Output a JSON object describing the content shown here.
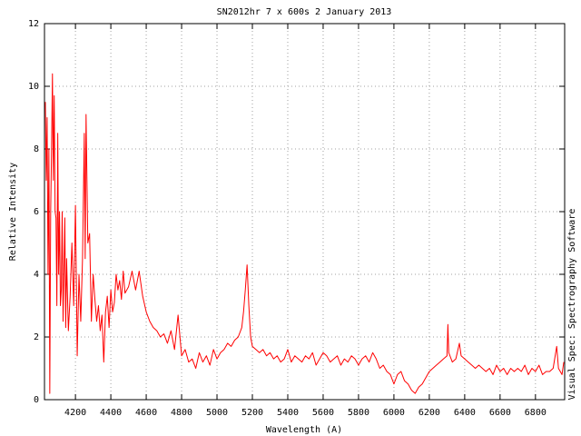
{
  "chart_data": {
    "type": "line",
    "title": "SN2012hr 7 x 600s 2 January 2013",
    "x_label": "Wavelength (A)",
    "y_label": "Relative Intensity",
    "side_note": "Visual Spec: Spectrography Software",
    "grid": true,
    "xlim": [
      4025,
      6965
    ],
    "ylim": [
      0,
      12
    ],
    "xticks": [
      4200,
      4400,
      4600,
      4800,
      5000,
      5200,
      5400,
      5600,
      5800,
      6000,
      6200,
      6400,
      6600,
      6800
    ],
    "yticks": [
      0,
      2,
      4,
      6,
      8,
      10,
      12
    ],
    "x": [
      4030,
      4035,
      4040,
      4045,
      4050,
      4055,
      4060,
      4065,
      4070,
      4075,
      4080,
      4085,
      4090,
      4095,
      4100,
      4105,
      4110,
      4115,
      4120,
      4125,
      4130,
      4140,
      4145,
      4150,
      4160,
      4170,
      4180,
      4190,
      4200,
      4210,
      4220,
      4230,
      4240,
      4250,
      4255,
      4260,
      4270,
      4280,
      4290,
      4300,
      4310,
      4320,
      4330,
      4340,
      4350,
      4360,
      4370,
      4380,
      4390,
      4400,
      4410,
      4420,
      4430,
      4440,
      4450,
      4460,
      4470,
      4480,
      4500,
      4520,
      4540,
      4560,
      4580,
      4600,
      4620,
      4640,
      4660,
      4680,
      4700,
      4720,
      4740,
      4760,
      4780,
      4800,
      4820,
      4840,
      4860,
      4880,
      4900,
      4920,
      4940,
      4960,
      4980,
      5000,
      5020,
      5040,
      5060,
      5080,
      5100,
      5120,
      5140,
      5150,
      5160,
      5170,
      5180,
      5190,
      5200,
      5220,
      5240,
      5260,
      5280,
      5300,
      5320,
      5340,
      5360,
      5380,
      5400,
      5420,
      5440,
      5460,
      5480,
      5500,
      5520,
      5540,
      5560,
      5580,
      5600,
      5620,
      5640,
      5660,
      5680,
      5700,
      5720,
      5740,
      5760,
      5780,
      5800,
      5820,
      5840,
      5860,
      5880,
      5900,
      5920,
      5940,
      5960,
      5980,
      6000,
      6020,
      6040,
      6060,
      6080,
      6100,
      6120,
      6140,
      6160,
      6180,
      6200,
      6220,
      6240,
      6260,
      6280,
      6300,
      6305,
      6310,
      6330,
      6350,
      6370,
      6380,
      6400,
      6420,
      6440,
      6460,
      6480,
      6500,
      6520,
      6540,
      6560,
      6580,
      6600,
      6620,
      6640,
      6660,
      6680,
      6700,
      6720,
      6740,
      6760,
      6780,
      6800,
      6820,
      6840,
      6860,
      6880,
      6900,
      6920,
      6930,
      6950,
      6960
    ],
    "series": [
      {
        "color": "#ff0000",
        "values": [
          9.5,
          7,
          9,
          4,
          8,
          0.2,
          6,
          8,
          10.4,
          7,
          9.7,
          6,
          5.8,
          3,
          8.5,
          4,
          6,
          3,
          3.5,
          6,
          2.5,
          5.8,
          2.3,
          4.5,
          2.2,
          3.3,
          5,
          3,
          6.2,
          1.4,
          4,
          2.5,
          4.5,
          8.5,
          4.5,
          9.1,
          5,
          5.3,
          2.5,
          4,
          3.2,
          2.5,
          3,
          2.2,
          2.7,
          1.2,
          2.8,
          3.3,
          2.3,
          3.5,
          2.8,
          3.1,
          4.0,
          3.5,
          3.8,
          3.2,
          4.1,
          3.4,
          3.6,
          4.1,
          3.5,
          4.1,
          3.3,
          2.8,
          2.5,
          2.3,
          2.2,
          2.0,
          2.1,
          1.8,
          2.2,
          1.6,
          2.7,
          1.4,
          1.6,
          1.2,
          1.3,
          1.0,
          1.5,
          1.2,
          1.4,
          1.1,
          1.6,
          1.3,
          1.5,
          1.6,
          1.8,
          1.7,
          1.9,
          2.0,
          2.3,
          2.8,
          3.5,
          4.3,
          3.0,
          2.0,
          1.7,
          1.6,
          1.5,
          1.6,
          1.4,
          1.5,
          1.3,
          1.4,
          1.2,
          1.3,
          1.6,
          1.2,
          1.4,
          1.3,
          1.2,
          1.4,
          1.3,
          1.5,
          1.1,
          1.3,
          1.5,
          1.4,
          1.2,
          1.3,
          1.4,
          1.1,
          1.3,
          1.2,
          1.4,
          1.3,
          1.1,
          1.3,
          1.4,
          1.2,
          1.5,
          1.3,
          1.0,
          1.1,
          0.9,
          0.8,
          0.5,
          0.8,
          0.9,
          0.6,
          0.5,
          0.3,
          0.2,
          0.4,
          0.5,
          0.7,
          0.9,
          1.0,
          1.1,
          1.2,
          1.3,
          1.4,
          2.4,
          1.5,
          1.2,
          1.3,
          1.8,
          1.4,
          1.3,
          1.2,
          1.1,
          1.0,
          1.1,
          1.0,
          0.9,
          1.0,
          0.8,
          1.1,
          0.9,
          1.0,
          0.8,
          1.0,
          0.9,
          1.0,
          0.9,
          1.1,
          0.8,
          1.0,
          0.9,
          1.1,
          0.8,
          0.9,
          0.9,
          1.0,
          1.7,
          1.0,
          0.8,
          1.2
        ]
      }
    ]
  }
}
